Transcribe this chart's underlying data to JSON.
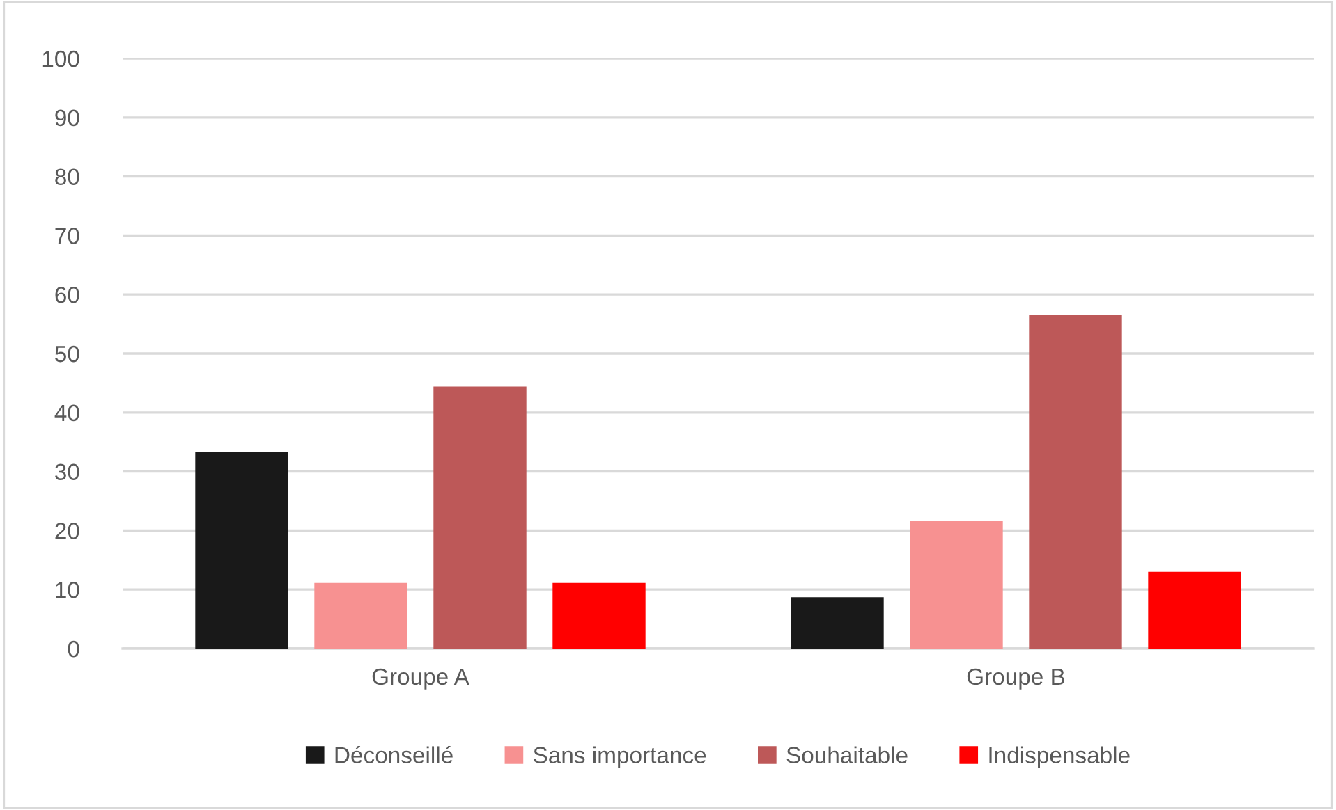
{
  "chart_data": {
    "type": "bar",
    "categories": [
      "Groupe A",
      "Groupe B"
    ],
    "series": [
      {
        "name": "Déconseillé",
        "color": "#191919",
        "values": [
          33.3,
          8.7
        ]
      },
      {
        "name": "Sans importance",
        "color": "#f79191",
        "values": [
          11.1,
          21.7
        ]
      },
      {
        "name": "Souhaitable",
        "color": "#bd5858",
        "values": [
          44.4,
          56.5
        ]
      },
      {
        "name": "Indispensable",
        "color": "#ff0000",
        "values": [
          11.1,
          13.0
        ]
      }
    ],
    "ylim": [
      0,
      100
    ],
    "yticks": [
      0,
      10,
      20,
      30,
      40,
      50,
      60,
      70,
      80,
      90,
      100
    ],
    "grid": "y",
    "legend": "bottom"
  }
}
